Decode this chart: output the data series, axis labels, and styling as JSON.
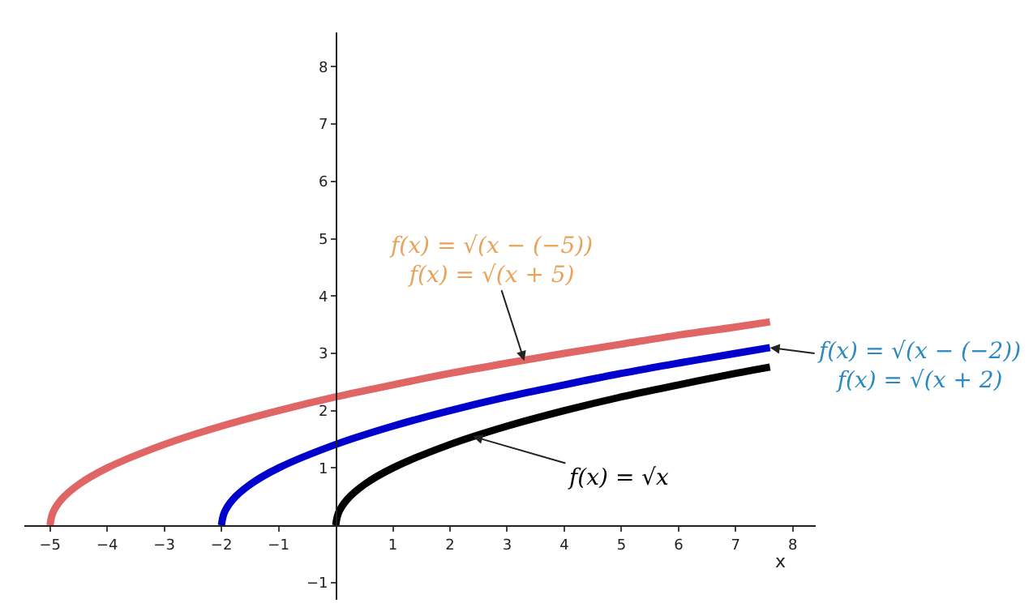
{
  "chart_data": {
    "type": "line",
    "xlabel": "x",
    "series": [
      {
        "color": "#e06666",
        "x": [
          -5,
          -4.95,
          -4.8,
          -4.5,
          -4,
          -3,
          -2,
          -1,
          0,
          1,
          2,
          3,
          4,
          5,
          6,
          7,
          7.6
        ],
        "values": [
          0,
          0.22,
          0.45,
          0.71,
          1,
          1.41,
          1.73,
          2,
          2.24,
          2.45,
          2.65,
          2.83,
          3,
          3.16,
          3.32,
          3.46,
          3.55
        ]
      },
      {
        "color": "#0000cc",
        "x": [
          -2,
          -1.95,
          -1.8,
          -1.5,
          -1,
          0,
          1,
          2,
          3,
          4,
          5,
          6,
          7,
          7.6
        ],
        "values": [
          0,
          0.22,
          0.45,
          0.71,
          1,
          1.41,
          1.73,
          2,
          2.24,
          2.45,
          2.65,
          2.83,
          3,
          3.1
        ]
      },
      {
        "color": "#000000",
        "x": [
          0,
          0.05,
          0.2,
          0.5,
          1,
          2,
          3,
          4,
          5,
          6,
          7,
          7.6
        ],
        "values": [
          0,
          0.22,
          0.45,
          0.71,
          1,
          1.41,
          1.73,
          2,
          2.24,
          2.45,
          2.65,
          2.76
        ]
      }
    ],
    "xlim": [
      -5.45,
      8.4
    ],
    "ylim": [
      -1.3,
      8.6
    ],
    "xticks": [
      {
        "value": -5,
        "label": "−5"
      },
      {
        "value": -4,
        "label": "−4"
      },
      {
        "value": -3,
        "label": "−3"
      },
      {
        "value": -2,
        "label": "−2"
      },
      {
        "value": -1,
        "label": "−1"
      },
      1,
      2,
      3,
      4,
      5,
      6,
      7,
      8
    ],
    "yticks": [
      {
        "value": -1,
        "label": "−1"
      },
      1,
      2,
      3,
      4,
      5,
      6,
      7,
      8
    ],
    "annotations": [
      {
        "text": "f(x) = √(x − (−5))\nf(x) = √(x + 5)",
        "x": 3.3,
        "y": 2.87
      },
      {
        "text": "f(x) = √(x − (−2))\nf(x) = √(x + 2)",
        "x": 7.6,
        "y": 3.1
      },
      {
        "text": "f(x) = √x",
        "x": 2.4,
        "y": 1.55
      }
    ],
    "grid": false,
    "marker": "none",
    "line_style": "solid"
  }
}
